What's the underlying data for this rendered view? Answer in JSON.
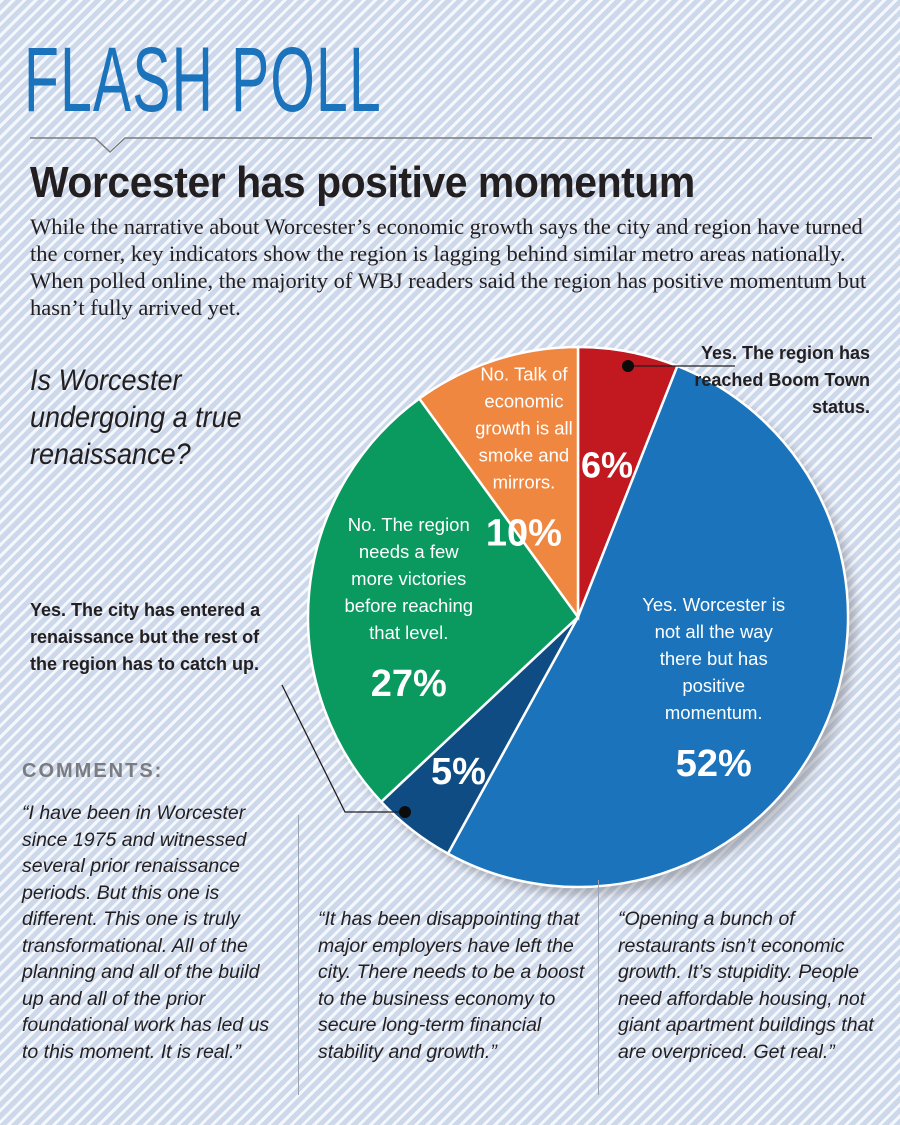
{
  "kicker": "FLASH POLL",
  "headline": "Worcester has positive momentum",
  "deck": "While the narrative about Worcester’s economic growth says the city and region have turned the corner, key indicators show the region is lagging behind similar metro areas nationally. When polled online, the majority of WBJ readers said the region has positive momentum but hasn’t fully arrived yet.",
  "question": "Is Worcester undergoing a true renaissance?",
  "chart_data": {
    "type": "pie",
    "title": "Is Worcester undergoing a true renaissance?",
    "slices": [
      {
        "label": "Yes. The region has reached Boom Town status.",
        "value": 6,
        "value_label": "6%",
        "color": "#c1191f"
      },
      {
        "label": "Yes. Worcester is not all the way there but has positive momentum.",
        "value": 52,
        "value_label": "52%",
        "color": "#1a73bb"
      },
      {
        "label": "Yes. The city has entered a renaissance but the rest of the region has to catch up.",
        "value": 5,
        "value_label": "5%",
        "color": "#0f4c84"
      },
      {
        "label": "No. The region needs a few more victories before reaching that level.",
        "value": 27,
        "value_label": "27%",
        "color": "#0a9a60"
      },
      {
        "label": "No. Talk of economic growth is all smoke and mirrors.",
        "value": 10,
        "value_label": "10%",
        "color": "#ef8740"
      }
    ]
  },
  "callouts": {
    "boom": "Yes. The region has reached Boom Town status.",
    "city": "Yes. The city has entered a renaissance but the rest of the region has to catch up."
  },
  "comments": {
    "heading": "COMMENTS:",
    "items": [
      "“I have been in Worcester since 1975 and witnessed several prior renaissance periods. But this one is different. This one is truly transformational. All of the planning and all of the build up and all of the prior foundational work has led us to this moment. It is real.”",
      "“It has been disappointing that major employers have left the city. There needs to be a boost to the business economy to secure long-term financial stability and growth.”",
      "“Opening a bunch of restaurants isn’t economic growth. It’s stupidity. People need affordable housing, not giant apartment buildings that are overpriced. Get real.”"
    ]
  }
}
